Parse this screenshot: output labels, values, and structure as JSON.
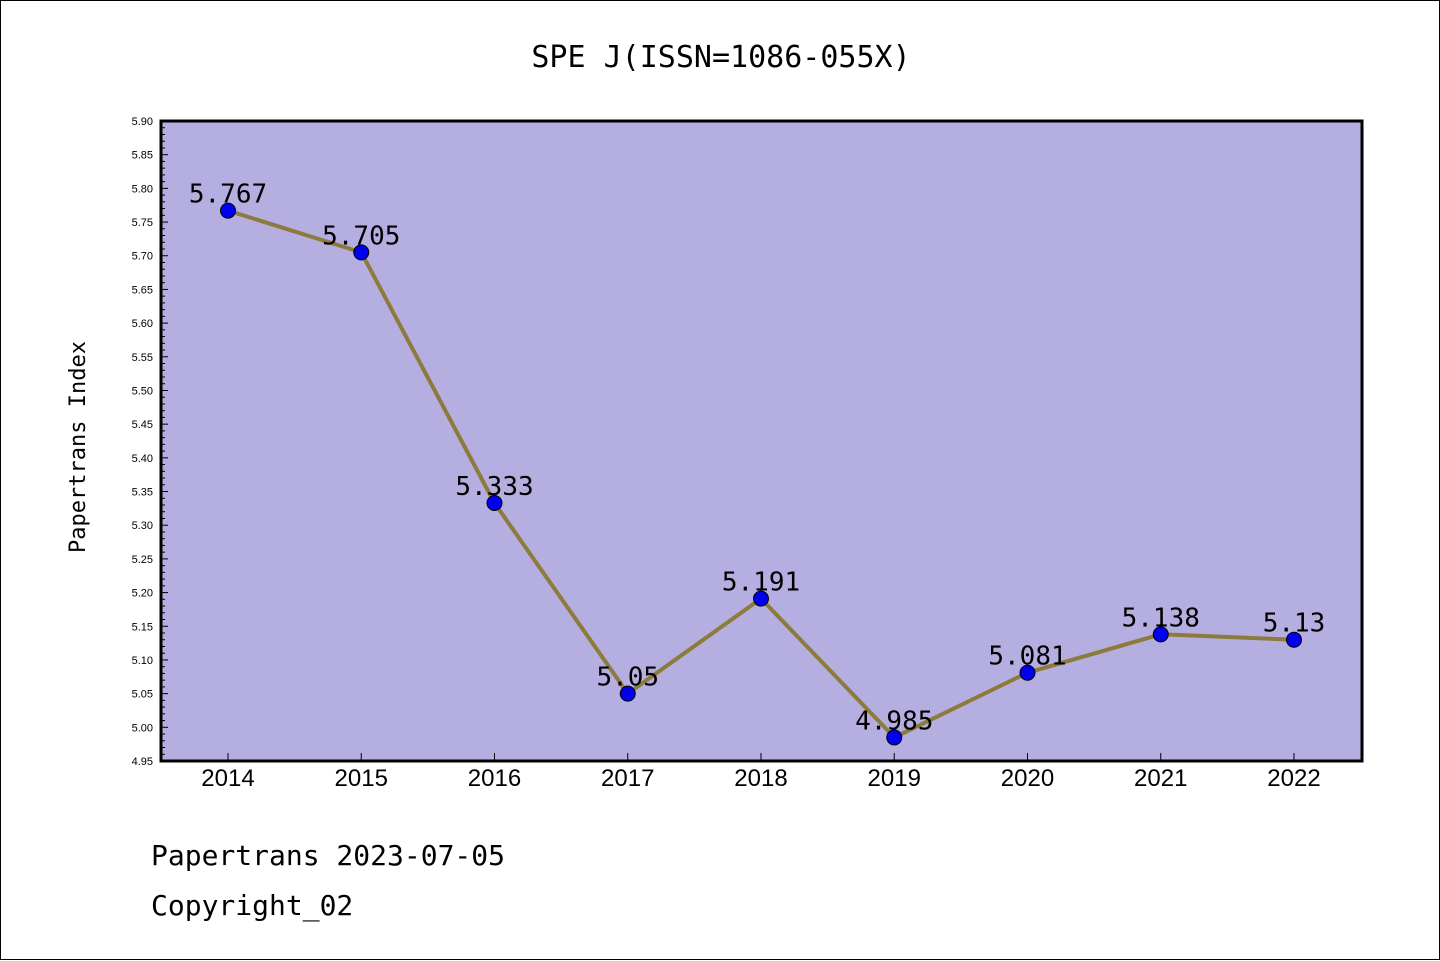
{
  "chart_data": {
    "type": "line",
    "title": "SPE J(ISSN=1086-055X)",
    "xlabel": "",
    "ylabel": "Papertrans Index",
    "categories": [
      "2014",
      "2015",
      "2016",
      "2017",
      "2018",
      "2019",
      "2020",
      "2021",
      "2022"
    ],
    "series": [
      {
        "values": [
          5.767,
          5.705,
          5.333,
          5.05,
          5.191,
          4.985,
          5.081,
          5.138,
          5.13
        ],
        "labels": [
          "5.767",
          "5.705",
          "5.333",
          "5.05",
          "5.191",
          "4.985",
          "5.081",
          "5.138",
          "5.13"
        ]
      }
    ],
    "ylim": [
      4.95,
      5.9
    ],
    "yticks": [
      "4.95",
      "5.00",
      "5.05",
      "5.10",
      "5.15",
      "5.20",
      "5.25",
      "5.30",
      "5.35",
      "5.40",
      "5.45",
      "5.50",
      "5.55",
      "5.60",
      "5.65",
      "5.70",
      "5.75",
      "5.80",
      "5.85",
      "5.90"
    ],
    "grid": false,
    "colors": {
      "plot_background": "#b5aee1",
      "line": "#8c7b3a",
      "marker": "#0000ee",
      "axis": "#000000"
    }
  },
  "footer": {
    "line1": "Papertrans 2023-07-05",
    "line2": "Copyright_02"
  }
}
